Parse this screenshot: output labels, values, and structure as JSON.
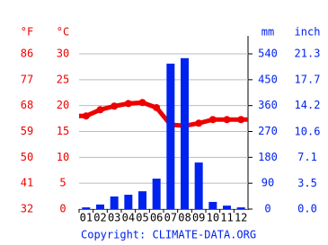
{
  "chart_data": {
    "type": "climate",
    "categories": [
      "01",
      "02",
      "03",
      "04",
      "05",
      "06",
      "07",
      "08",
      "09",
      "10",
      "11",
      "12"
    ],
    "series": [
      {
        "name": "temperature",
        "type": "line",
        "axis": "y",
        "color": "#ee0000",
        "values": [
          18.0,
          19.2,
          19.9,
          20.4,
          20.6,
          19.6,
          16.3,
          16.1,
          16.6,
          17.3,
          17.3,
          17.3
        ]
      },
      {
        "name": "precipitation",
        "type": "bar",
        "axis": "y2",
        "color": "#0022ee",
        "values": [
          6,
          16,
          44,
          50,
          62,
          106,
          506,
          525,
          162,
          25,
          12,
          6
        ]
      }
    ],
    "axes": [
      {
        "id": "yF",
        "label": "°F",
        "color": "#ee0000",
        "lim": [
          32,
          86
        ],
        "ticks": [
          32,
          41,
          50,
          59,
          68,
          77,
          86
        ]
      },
      {
        "id": "y",
        "label": "°C",
        "color": "#ee0000",
        "lim": [
          0,
          30
        ],
        "ticks": [
          0,
          5,
          10,
          15,
          20,
          25,
          30
        ]
      },
      {
        "id": "y2",
        "label": "mm",
        "color": "#0022ee",
        "lim": [
          0,
          540
        ],
        "ticks": [
          0,
          90,
          180,
          270,
          360,
          450,
          540
        ]
      },
      {
        "id": "yIn",
        "label": "inch",
        "color": "#0022ee",
        "lim": [
          0,
          21.3
        ],
        "ticks": [
          {
            "value": 0,
            "label": "0.0"
          },
          3.5,
          7.1,
          10.6,
          14.2,
          17.7,
          21.3
        ]
      }
    ],
    "grid": true,
    "footer": "Copyright: CLIMATE-DATA.ORG"
  }
}
